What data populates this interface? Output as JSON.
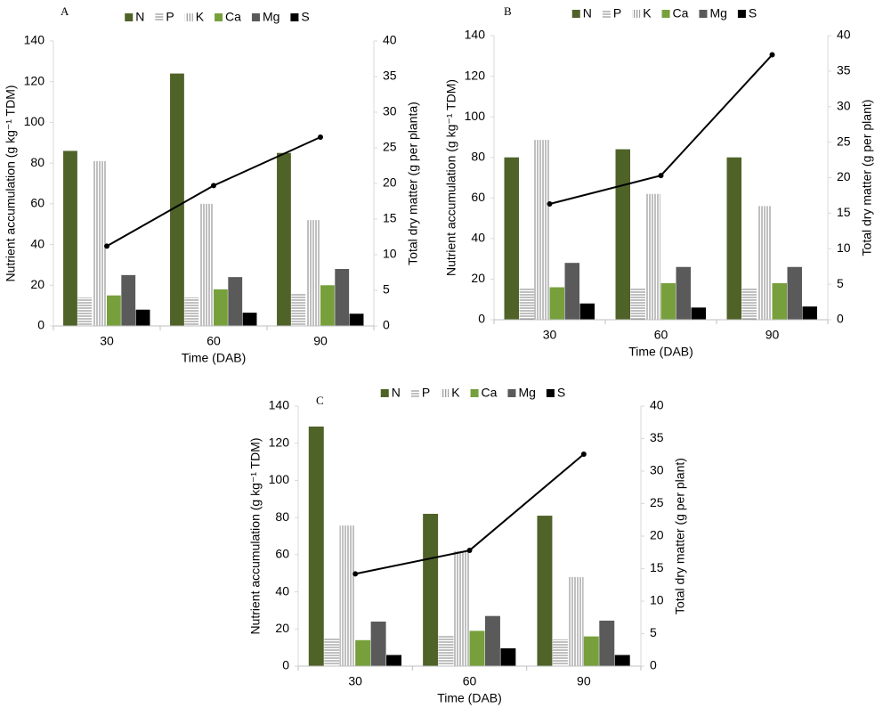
{
  "chart_data": [
    {
      "type": "bar",
      "title": "A",
      "x_label": "Time (DAB)",
      "y_label": "Nutrient accumulation (g kg⁻¹ TDM)",
      "y2_label": "Total dry matter (g per planta)",
      "categories": [
        "30",
        "60",
        "90"
      ],
      "ylim": [
        0,
        140
      ],
      "yticks": [
        0,
        20,
        40,
        60,
        80,
        100,
        120,
        140
      ],
      "y2lim": [
        0,
        40
      ],
      "y2ticks": [
        0,
        5,
        10,
        15,
        20,
        25,
        30,
        35,
        40
      ],
      "series": [
        {
          "name": "N",
          "color": "#4f6228",
          "values": [
            86,
            124,
            85
          ]
        },
        {
          "name": "P",
          "color": "#808080",
          "pattern": "horizontal",
          "values": [
            14,
            14,
            16
          ]
        },
        {
          "name": "K",
          "color": "#808080",
          "pattern": "vertical",
          "values": [
            81,
            60,
            52
          ]
        },
        {
          "name": "Ca",
          "color": "#77a03c",
          "values": [
            15,
            18,
            20
          ]
        },
        {
          "name": "Mg",
          "color": "#5a5a5a",
          "values": [
            25,
            24,
            28
          ]
        },
        {
          "name": "S",
          "color": "#000000",
          "values": [
            8,
            6.5,
            6
          ]
        },
        {
          "type": "line",
          "axis": "y2",
          "color": "#000000",
          "values": [
            11.2,
            19.7,
            26.5
          ]
        }
      ]
    },
    {
      "type": "bar",
      "title": "B",
      "x_label": "Time (DAB)",
      "y_label": "Nutrient accumulation (g kg⁻¹ TDM)",
      "y2_label": "Total dry matter (g per plant)",
      "categories": [
        "30",
        "60",
        "90"
      ],
      "ylim": [
        0,
        140
      ],
      "yticks": [
        0,
        20,
        40,
        60,
        80,
        100,
        120,
        140
      ],
      "y2lim": [
        0,
        40
      ],
      "y2ticks": [
        0,
        5,
        10,
        15,
        20,
        25,
        30,
        35,
        40
      ],
      "series": [
        {
          "name": "N",
          "color": "#4f6228",
          "values": [
            80,
            84,
            80
          ]
        },
        {
          "name": "P",
          "color": "#808080",
          "pattern": "horizontal",
          "values": [
            16,
            16,
            16
          ]
        },
        {
          "name": "K",
          "color": "#808080",
          "pattern": "vertical",
          "values": [
            88.6,
            62,
            56
          ]
        },
        {
          "name": "Ca",
          "color": "#77a03c",
          "values": [
            16,
            18,
            18
          ]
        },
        {
          "name": "Mg",
          "color": "#5a5a5a",
          "values": [
            28,
            26,
            26
          ]
        },
        {
          "name": "S",
          "color": "#000000",
          "values": [
            8,
            6,
            6.5
          ]
        },
        {
          "type": "line",
          "axis": "y2",
          "color": "#000000",
          "values": [
            16.3,
            20.3,
            37.3
          ]
        }
      ]
    },
    {
      "type": "bar",
      "title": "C",
      "x_label": "Time (DAB)",
      "y_label": "Nutrient accumulation (g kg⁻¹ TDM)",
      "y2_label": "Total dry matter (g per plant)",
      "categories": [
        "30",
        "60",
        "90"
      ],
      "ylim": [
        0,
        140
      ],
      "yticks": [
        0,
        20,
        40,
        60,
        80,
        100,
        120,
        140
      ],
      "y2lim": [
        0,
        40
      ],
      "y2ticks": [
        0,
        5,
        10,
        15,
        20,
        25,
        30,
        35,
        40
      ],
      "series": [
        {
          "name": "N",
          "color": "#4f6228",
          "values": [
            129,
            82,
            81
          ]
        },
        {
          "name": "P",
          "color": "#808080",
          "pattern": "horizontal",
          "values": [
            15.3,
            16.3,
            14.4
          ]
        },
        {
          "name": "K",
          "color": "#808080",
          "pattern": "vertical",
          "values": [
            75.7,
            62,
            48
          ]
        },
        {
          "name": "Ca",
          "color": "#77a03c",
          "values": [
            14,
            19,
            16
          ]
        },
        {
          "name": "Mg",
          "color": "#5a5a5a",
          "values": [
            24,
            27,
            24.5
          ]
        },
        {
          "name": "S",
          "color": "#000000",
          "values": [
            6,
            9.6,
            6
          ]
        },
        {
          "type": "line",
          "axis": "y2",
          "color": "#000000",
          "values": [
            14.2,
            17.8,
            32.6
          ]
        }
      ]
    }
  ]
}
